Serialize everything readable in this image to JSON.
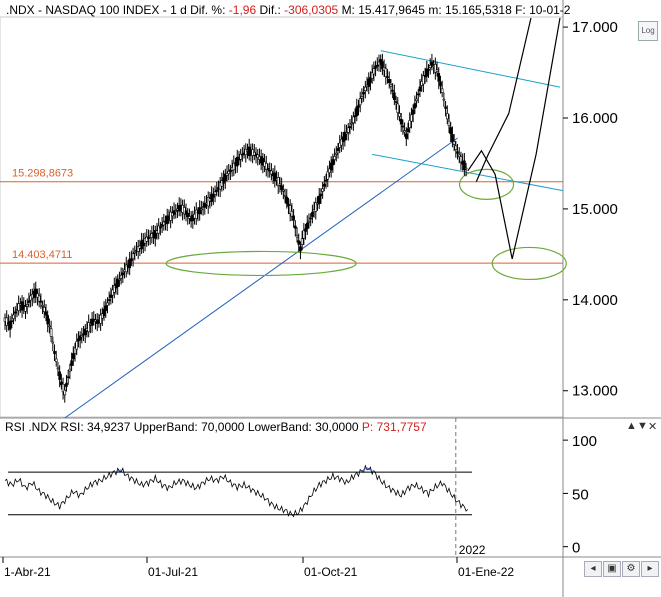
{
  "header": {
    "symbol": ".NDX - NASDAQ 100 INDEX -",
    "interval": "1 d",
    "dif_pct_label": "Dif. %:",
    "dif_pct_value": "-1,96",
    "dif_label": "Dif.:",
    "dif_value": "-306,0305",
    "max_label": "M:",
    "max_value": "15.417,9645",
    "min_label": "m:",
    "min_value": "15.165,5318",
    "date_label": "F:",
    "date_value": "10-01-2"
  },
  "log_button": "Log",
  "rsi_header": {
    "label": "RSI .NDX RSI: 34,9237 UpperBand: 70,0000 LowerBand: 30,0000",
    "p_value": "P: 731,7757"
  },
  "colors": {
    "price": "#000000",
    "trend_blue": "#1f5fc0",
    "channel_cyan": "#1aa0c8",
    "support_orange": "#d9622b",
    "ellipse_green": "#6aaa3a",
    "rsi_over": "#3a5fd0",
    "axis_text": "#000000"
  },
  "chart_data": [
    {
      "type": "candlestick",
      "title": ".NDX - NASDAQ 100 INDEX",
      "y_ticks": [
        13000,
        14000,
        15000,
        16000,
        17000
      ],
      "y_tick_labels": [
        "13.000",
        "14.000",
        "15.000",
        "16.000",
        "17.000"
      ],
      "ylim": [
        12700,
        17100
      ],
      "x_ticks": [
        "1-Abr-21",
        "01-Jul-21",
        "01-Oct-21",
        "01-Ene-22"
      ],
      "year_marker": "2022",
      "support_lines": [
        {
          "label": "15.298,8673",
          "value": 15298.87
        },
        {
          "label": "14.403,4711",
          "value": 14403.47
        }
      ],
      "series_close": [
        [
          0,
          13780
        ],
        [
          3,
          13720
        ],
        [
          6,
          13860
        ],
        [
          9,
          13950
        ],
        [
          12,
          13900
        ],
        [
          15,
          14020
        ],
        [
          18,
          14080
        ],
        [
          21,
          13980
        ],
        [
          24,
          13850
        ],
        [
          27,
          13640
        ],
        [
          29,
          13420
        ],
        [
          31,
          13250
        ],
        [
          33,
          13080
        ],
        [
          35,
          12980
        ],
        [
          37,
          13150
        ],
        [
          40,
          13380
        ],
        [
          43,
          13560
        ],
        [
          46,
          13620
        ],
        [
          49,
          13700
        ],
        [
          52,
          13780
        ],
        [
          55,
          13750
        ],
        [
          58,
          13860
        ],
        [
          61,
          14000
        ],
        [
          64,
          14120
        ],
        [
          67,
          14220
        ],
        [
          70,
          14320
        ],
        [
          73,
          14400
        ],
        [
          76,
          14520
        ],
        [
          79,
          14580
        ],
        [
          82,
          14650
        ],
        [
          85,
          14700
        ],
        [
          88,
          14720
        ],
        [
          91,
          14800
        ],
        [
          94,
          14860
        ],
        [
          97,
          14920
        ],
        [
          100,
          14980
        ],
        [
          103,
          15020
        ],
        [
          106,
          14960
        ],
        [
          109,
          14880
        ],
        [
          112,
          14940
        ],
        [
          115,
          15000
        ],
        [
          118,
          15060
        ],
        [
          121,
          15120
        ],
        [
          124,
          15200
        ],
        [
          127,
          15280
        ],
        [
          130,
          15380
        ],
        [
          133,
          15440
        ],
        [
          136,
          15520
        ],
        [
          139,
          15600
        ],
        [
          142,
          15640
        ],
        [
          145,
          15620
        ],
        [
          148,
          15580
        ],
        [
          151,
          15520
        ],
        [
          154,
          15440
        ],
        [
          157,
          15380
        ],
        [
          160,
          15300
        ],
        [
          163,
          15200
        ],
        [
          166,
          15040
        ],
        [
          169,
          14900
        ],
        [
          171,
          14700
        ],
        [
          173,
          14560
        ],
        [
          175,
          14720
        ],
        [
          178,
          14860
        ],
        [
          181,
          14980
        ],
        [
          184,
          15100
        ],
        [
          187,
          15260
        ],
        [
          190,
          15420
        ],
        [
          193,
          15560
        ],
        [
          196,
          15700
        ],
        [
          199,
          15800
        ],
        [
          202,
          15900
        ],
        [
          205,
          16020
        ],
        [
          208,
          16180
        ],
        [
          211,
          16320
        ],
        [
          214,
          16420
        ],
        [
          217,
          16560
        ],
        [
          220,
          16620
        ],
        [
          223,
          16500
        ],
        [
          226,
          16360
        ],
        [
          229,
          16180
        ],
        [
          232,
          15960
        ],
        [
          235,
          15800
        ],
        [
          238,
          16000
        ],
        [
          241,
          16200
        ],
        [
          244,
          16380
        ],
        [
          247,
          16500
        ],
        [
          250,
          16600
        ],
        [
          253,
          16520
        ],
        [
          256,
          16300
        ],
        [
          259,
          16020
        ],
        [
          262,
          15780
        ],
        [
          265,
          15620
        ],
        [
          268,
          15510
        ],
        [
          271,
          15418
        ]
      ],
      "projection": [
        [
          271,
          15418
        ],
        [
          279,
          15640
        ],
        [
          287,
          15380
        ],
        [
          297,
          14450
        ],
        [
          311,
          15600
        ],
        [
          325,
          17100
        ]
      ],
      "projection_alt": [
        [
          276,
          15300
        ],
        [
          283,
          15600
        ],
        [
          295,
          16050
        ],
        [
          308,
          17100
        ]
      ]
    },
    {
      "type": "line",
      "title": "RSI .NDX",
      "y_ticks": [
        0,
        50,
        100
      ],
      "ylim": [
        -5,
        102
      ],
      "upper_band": 70,
      "lower_band": 30,
      "values": [
        [
          0,
          62
        ],
        [
          4,
          58
        ],
        [
          8,
          63
        ],
        [
          12,
          55
        ],
        [
          16,
          60
        ],
        [
          20,
          52
        ],
        [
          24,
          48
        ],
        [
          28,
          42
        ],
        [
          32,
          38
        ],
        [
          36,
          45
        ],
        [
          40,
          52
        ],
        [
          44,
          48
        ],
        [
          48,
          55
        ],
        [
          52,
          60
        ],
        [
          56,
          62
        ],
        [
          60,
          66
        ],
        [
          64,
          70
        ],
        [
          68,
          72
        ],
        [
          72,
          66
        ],
        [
          76,
          62
        ],
        [
          80,
          58
        ],
        [
          84,
          60
        ],
        [
          88,
          64
        ],
        [
          92,
          58
        ],
        [
          96,
          55
        ],
        [
          100,
          60
        ],
        [
          104,
          62
        ],
        [
          108,
          58
        ],
        [
          112,
          55
        ],
        [
          116,
          60
        ],
        [
          120,
          64
        ],
        [
          124,
          62
        ],
        [
          128,
          66
        ],
        [
          132,
          60
        ],
        [
          136,
          56
        ],
        [
          140,
          58
        ],
        [
          144,
          54
        ],
        [
          148,
          50
        ],
        [
          152,
          46
        ],
        [
          156,
          40
        ],
        [
          160,
          36
        ],
        [
          164,
          34
        ],
        [
          168,
          30
        ],
        [
          172,
          32
        ],
        [
          176,
          40
        ],
        [
          180,
          50
        ],
        [
          184,
          58
        ],
        [
          188,
          62
        ],
        [
          192,
          66
        ],
        [
          196,
          64
        ],
        [
          200,
          60
        ],
        [
          204,
          66
        ],
        [
          208,
          70
        ],
        [
          212,
          74
        ],
        [
          216,
          70
        ],
        [
          220,
          62
        ],
        [
          224,
          56
        ],
        [
          228,
          52
        ],
        [
          232,
          48
        ],
        [
          236,
          55
        ],
        [
          240,
          58
        ],
        [
          244,
          54
        ],
        [
          248,
          50
        ],
        [
          252,
          56
        ],
        [
          256,
          60
        ],
        [
          260,
          52
        ],
        [
          264,
          44
        ],
        [
          268,
          38
        ],
        [
          271,
          35
        ]
      ]
    }
  ]
}
